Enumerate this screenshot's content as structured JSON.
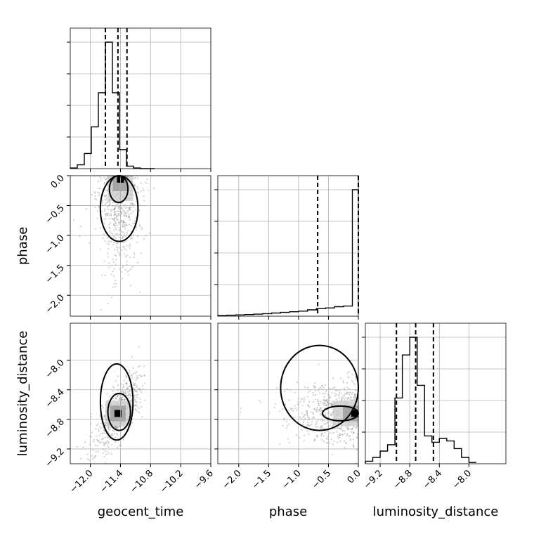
{
  "chart_data": {
    "type": "corner",
    "parameters": [
      "geocent_time",
      "phase",
      "luminosity_distance"
    ],
    "grid": true,
    "axes": {
      "geocent_time": {
        "label": "geocent_time",
        "range": [
          -12.4,
          -9.6
        ],
        "ticks": [
          "−12.0",
          "−11.4",
          "−10.8",
          "−10.2",
          "−9.6"
        ],
        "tick_values": [
          -12.0,
          -11.4,
          -10.8,
          -10.2,
          -9.6
        ]
      },
      "phase": {
        "label": "phase",
        "range": [
          -2.35,
          0.0
        ],
        "ticks": [
          "−2.0",
          "−1.5",
          "−1.0",
          "−0.5",
          "0.0"
        ],
        "tick_values": [
          -2.0,
          -1.5,
          -1.0,
          -0.5,
          0.0
        ]
      },
      "luminosity_distance": {
        "label": "luminosity_distance",
        "range": [
          -9.4,
          -7.5
        ],
        "ticks": [
          "−9.2",
          "−8.8",
          "−8.4",
          "−8.0"
        ],
        "tick_values": [
          -9.2,
          -8.8,
          -8.4,
          -8.0
        ]
      }
    },
    "histograms": [
      {
        "parameter": "geocent_time",
        "bin_edges": [
          -12.4,
          -12.26,
          -12.12,
          -11.98,
          -11.84,
          -11.7,
          -11.56,
          -11.42,
          -11.28,
          -11.14,
          -11.0,
          -10.86,
          -10.72
        ],
        "counts": [
          0.5,
          3,
          12,
          33,
          60,
          100,
          60,
          15,
          2,
          0.5,
          0,
          0
        ],
        "quantiles": [
          -11.7,
          -11.45,
          -11.27
        ]
      },
      {
        "parameter": "phase",
        "bin_edges": [
          -2.35,
          -2.2,
          -2.05,
          -1.9,
          -1.75,
          -1.6,
          -1.45,
          -1.3,
          -1.15,
          -1.0,
          -0.85,
          -0.7,
          -0.55,
          -0.4,
          -0.25,
          -0.1,
          0.0
        ],
        "counts": [
          0.5,
          0.8,
          1,
          1.3,
          1.6,
          2,
          2.5,
          3,
          3.5,
          4,
          5,
          6,
          6.5,
          7.5,
          8,
          100
        ],
        "quantiles": [
          -0.68,
          0.0
        ]
      },
      {
        "parameter": "luminosity_distance",
        "bin_edges": [
          -9.4,
          -9.3,
          -9.2,
          -9.1,
          -9.0,
          -8.9,
          -8.8,
          -8.7,
          -8.6,
          -8.5,
          -8.4,
          -8.3,
          -8.2,
          -8.1,
          -8.0,
          -7.9
        ],
        "counts": [
          2,
          5,
          10,
          15,
          52,
          86,
          100,
          62,
          22,
          17,
          20,
          18,
          12,
          5,
          1
        ],
        "quantiles": [
          -8.98,
          -8.72,
          -8.48
        ]
      }
    ],
    "scatter_panels": [
      {
        "x": "geocent_time",
        "y": "phase",
        "density_peak": [
          -11.4,
          -0.05
        ],
        "contour_bounds": [
          [
            -11.8,
            -11.05,
            -1.1,
            0.0
          ],
          [
            -11.62,
            -11.25,
            -0.45,
            0.0
          ]
        ]
      },
      {
        "x": "geocent_time",
        "y": "luminosity_distance",
        "density_peak": [
          -11.45,
          -8.72
        ],
        "contour_bounds": [
          [
            -11.8,
            -11.15,
            -9.08,
            -8.05
          ],
          [
            -11.65,
            -11.2,
            -8.95,
            -8.45
          ]
        ]
      },
      {
        "x": "phase",
        "y": "luminosity_distance",
        "density_peak": [
          -0.02,
          -8.72
        ],
        "contour_bounds": [
          [
            -1.3,
            0.0,
            -8.95,
            -7.8
          ],
          [
            -0.6,
            0.0,
            -8.82,
            -8.62
          ]
        ]
      }
    ]
  }
}
